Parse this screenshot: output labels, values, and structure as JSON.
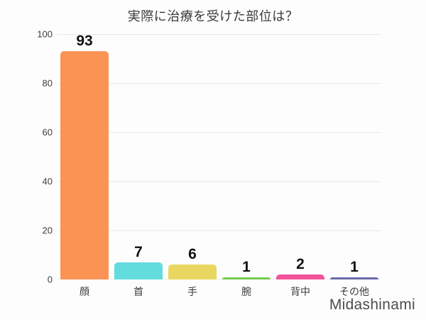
{
  "page": {
    "watermark": "Midashinami"
  },
  "chart_data": {
    "type": "bar",
    "title": "実際に治療を受けた部位は？",
    "categories": [
      "顔",
      "首",
      "手",
      "腕",
      "背中",
      "その他"
    ],
    "values": [
      93,
      7,
      6,
      1,
      2,
      1
    ],
    "bar_colors": [
      "#FB9355",
      "#62DCDD",
      "#E9D75F",
      "#76CA51",
      "#F2549B",
      "#6B69A5"
    ],
    "value_labels": [
      "93",
      "7",
      "6",
      "1",
      "2",
      "1"
    ],
    "xlabel": "",
    "ylabel": "",
    "ylim": [
      0,
      100
    ],
    "yticks": [
      0,
      20,
      40,
      60,
      80,
      100
    ],
    "grid": "horizontal gridlines on, light gray",
    "legend": "none",
    "gridline_color": "#E8E8E8",
    "value_label_color": "#111111",
    "axis_text_color": "#3C3C3C",
    "background_color": "#FDFDFD"
  }
}
